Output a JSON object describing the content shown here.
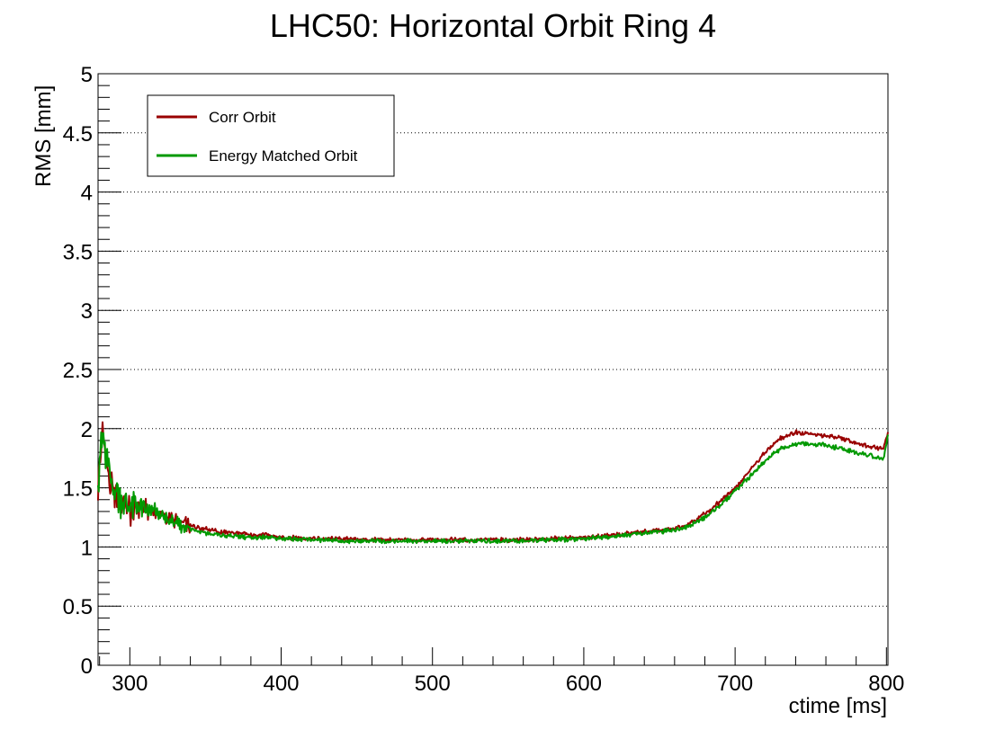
{
  "chart_data": {
    "type": "line",
    "title": "LHC50: Horizontal Orbit Ring 4",
    "xlabel": "ctime [ms]",
    "ylabel": "RMS [mm]",
    "xlim": [
      279,
      801
    ],
    "ylim": [
      0,
      5
    ],
    "x_ticks": [
      300,
      400,
      500,
      600,
      700,
      800
    ],
    "y_ticks": [
      0,
      0.5,
      1,
      1.5,
      2,
      2.5,
      3,
      3.5,
      4,
      4.5,
      5
    ],
    "y_tick_labels": [
      "0",
      "0.5",
      "1",
      "1.5",
      "2",
      "2.5",
      "3",
      "3.5",
      "4",
      "4.5",
      "5"
    ],
    "grid": "horizontal dotted",
    "legend_position": "top-left",
    "series": [
      {
        "name": "Corr Orbit",
        "color": "#990000",
        "x": [
          279,
          282,
          285,
          288,
          291,
          295,
          300,
          305,
          310,
          315,
          320,
          325,
          330,
          340,
          350,
          360,
          370,
          380,
          390,
          400,
          420,
          440,
          460,
          480,
          500,
          520,
          540,
          560,
          580,
          600,
          620,
          640,
          650,
          660,
          670,
          680,
          690,
          700,
          710,
          720,
          730,
          740,
          750,
          760,
          770,
          780,
          790,
          798,
          801
        ],
        "y": [
          1.5,
          2.0,
          1.6,
          1.5,
          1.4,
          1.35,
          1.3,
          1.35,
          1.3,
          1.3,
          1.28,
          1.25,
          1.22,
          1.18,
          1.15,
          1.13,
          1.12,
          1.1,
          1.1,
          1.08,
          1.07,
          1.07,
          1.06,
          1.06,
          1.06,
          1.06,
          1.06,
          1.06,
          1.07,
          1.08,
          1.1,
          1.13,
          1.14,
          1.15,
          1.2,
          1.28,
          1.38,
          1.5,
          1.65,
          1.8,
          1.92,
          1.97,
          1.96,
          1.94,
          1.92,
          1.88,
          1.85,
          1.83,
          1.97
        ]
      },
      {
        "name": "Energy Matched Orbit",
        "color": "#009900",
        "x": [
          279,
          282,
          285,
          288,
          291,
          295,
          300,
          305,
          310,
          315,
          320,
          325,
          330,
          340,
          350,
          360,
          370,
          380,
          390,
          400,
          420,
          440,
          460,
          480,
          500,
          520,
          540,
          560,
          580,
          600,
          620,
          640,
          650,
          660,
          670,
          680,
          690,
          700,
          710,
          720,
          730,
          740,
          750,
          760,
          770,
          780,
          790,
          798,
          801
        ],
        "y": [
          1.6,
          1.9,
          1.7,
          1.55,
          1.45,
          1.38,
          1.33,
          1.35,
          1.32,
          1.3,
          1.27,
          1.23,
          1.2,
          1.15,
          1.12,
          1.1,
          1.09,
          1.08,
          1.08,
          1.07,
          1.06,
          1.05,
          1.05,
          1.05,
          1.05,
          1.05,
          1.05,
          1.05,
          1.06,
          1.07,
          1.09,
          1.12,
          1.13,
          1.14,
          1.18,
          1.25,
          1.35,
          1.47,
          1.6,
          1.73,
          1.83,
          1.87,
          1.87,
          1.86,
          1.83,
          1.8,
          1.77,
          1.74,
          1.95
        ]
      }
    ]
  }
}
